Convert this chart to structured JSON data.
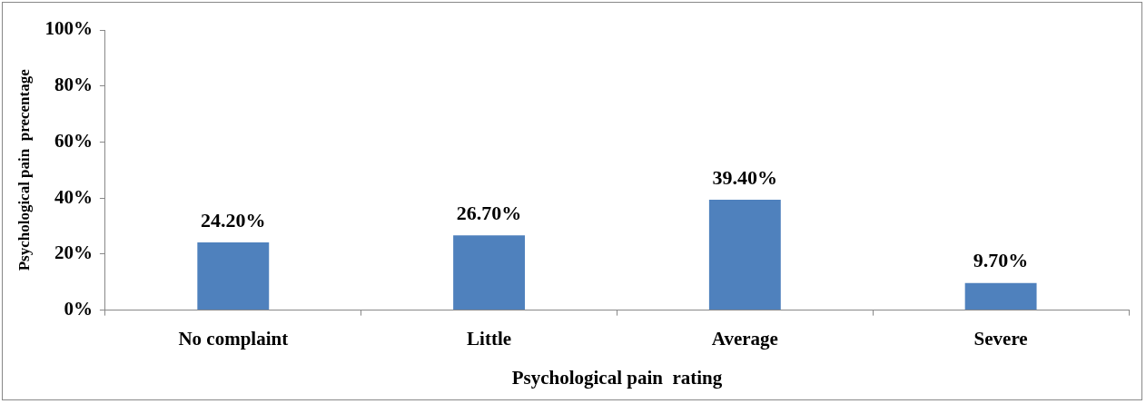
{
  "chart_data": {
    "type": "bar",
    "xlabel": "Psychological pain  rating",
    "ylabel": "Psychological pain  precentage",
    "categories": [
      "No complaint",
      "Little",
      "Average",
      "Severe"
    ],
    "values": [
      24.2,
      26.7,
      39.4,
      9.7
    ],
    "value_labels": [
      "24.20%",
      "26.70%",
      "39.40%",
      "9.70%"
    ],
    "color": "#4f81bd",
    "ylim": [
      0,
      100
    ],
    "yticks": [
      {
        "value": 0,
        "label": "0%"
      },
      {
        "value": 20,
        "label": "20%"
      },
      {
        "value": 40,
        "label": "40%"
      },
      {
        "value": 60,
        "label": "60%"
      },
      {
        "value": 80,
        "label": "80%"
      },
      {
        "value": 100,
        "label": "100%"
      }
    ],
    "grid": false,
    "legend": false
  }
}
